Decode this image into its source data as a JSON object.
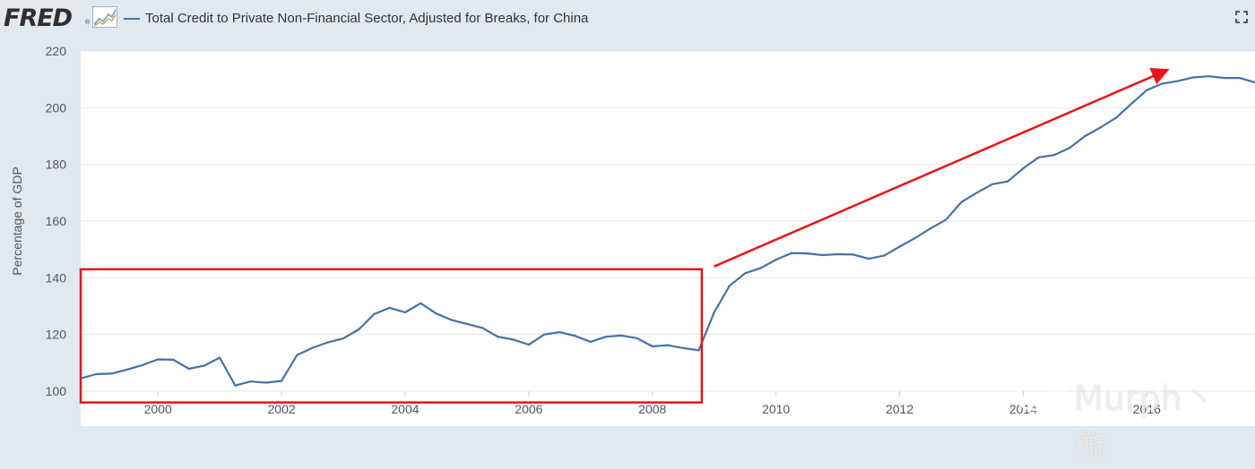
{
  "header": {
    "logo_text": "FRED",
    "logo_reg": "®",
    "legend_label": "Total Credit to Private Non-Financial Sector, Adjusted for Breaks, for China",
    "series_color": "#4572a7"
  },
  "icons": {
    "logo": "fred-graph-icon",
    "fullscreen": "fullscreen-icon"
  },
  "watermark": {
    "text": "Murph丶 璇"
  },
  "annotation_color": "#e8141b",
  "chart_data": {
    "type": "line",
    "title": "Total Credit to Private Non-Financial Sector, Adjusted for Breaks, for China",
    "ylabel": "Percentage of GDP",
    "xlabel": "",
    "ylim": [
      100,
      220
    ],
    "xlim": [
      1998.75,
      2017.75
    ],
    "yticks": [
      100,
      120,
      140,
      160,
      180,
      200,
      220
    ],
    "xticks": [
      "2000",
      "2002",
      "2004",
      "2006",
      "2008",
      "2010",
      "2012",
      "2014",
      "2016"
    ],
    "grid": true,
    "series": [
      {
        "name": "Total Credit to Private Non-Financial Sector, Adjusted for Breaks, for China",
        "x": [
          "1998-10-01",
          "1999-01-01",
          "1999-04-01",
          "1999-07-01",
          "1999-10-01",
          "2000-01-01",
          "2000-04-01",
          "2000-07-01",
          "2000-10-01",
          "2001-01-01",
          "2001-04-01",
          "2001-07-01",
          "2001-10-01",
          "2002-01-01",
          "2002-04-01",
          "2002-07-01",
          "2002-10-01",
          "2003-01-01",
          "2003-04-01",
          "2003-07-01",
          "2003-10-01",
          "2004-01-01",
          "2004-04-01",
          "2004-07-01",
          "2004-10-01",
          "2005-01-01",
          "2005-04-01",
          "2005-07-01",
          "2005-10-01",
          "2006-01-01",
          "2006-04-01",
          "2006-07-01",
          "2006-10-01",
          "2007-01-01",
          "2007-04-01",
          "2007-07-01",
          "2007-10-01",
          "2008-01-01",
          "2008-04-01",
          "2008-07-01",
          "2008-10-01",
          "2009-01-01",
          "2009-04-01",
          "2009-07-01",
          "2009-10-01",
          "2010-01-01",
          "2010-04-01",
          "2010-07-01",
          "2010-10-01",
          "2011-01-01",
          "2011-04-01",
          "2011-07-01",
          "2011-10-01",
          "2012-01-01",
          "2012-04-01",
          "2012-07-01",
          "2012-10-01",
          "2013-01-01",
          "2013-04-01",
          "2013-07-01",
          "2013-10-01",
          "2014-01-01",
          "2014-04-01",
          "2014-07-01",
          "2014-10-01",
          "2015-01-01",
          "2015-04-01",
          "2015-07-01",
          "2015-10-01",
          "2016-01-01",
          "2016-04-01",
          "2016-07-01",
          "2016-10-01",
          "2017-01-01",
          "2017-04-01",
          "2017-07-01",
          "2017-10-01"
        ],
        "values": [
          104.5,
          106.0,
          106.2,
          107.6,
          109.2,
          111.2,
          111.1,
          107.9,
          109.0,
          111.8,
          102.0,
          103.4,
          103.0,
          103.6,
          112.7,
          115.3,
          117.2,
          118.6,
          121.8,
          127.2,
          129.4,
          127.8,
          131.0,
          127.4,
          125.1,
          123.7,
          122.3,
          119.2,
          118.2,
          116.4,
          120.0,
          120.8,
          119.5,
          117.4,
          119.2,
          119.6,
          118.7,
          115.8,
          116.2,
          115.2,
          114.4,
          127.8,
          137.2,
          141.6,
          143.4,
          146.4,
          148.7,
          148.6,
          148.0,
          148.3,
          148.2,
          146.7,
          147.8,
          151.0,
          154.0,
          157.4,
          160.5,
          166.7,
          170.0,
          173.0,
          174.0,
          178.6,
          182.5,
          183.3,
          185.8,
          190.0,
          193.0,
          196.4,
          201.4,
          206.2,
          208.5,
          209.4,
          210.7,
          211.1,
          210.5,
          210.5,
          208.9
        ]
      }
    ],
    "annotations": [
      {
        "type": "rectangle",
        "x_range": [
          1998.75,
          2008.8
        ],
        "y_range": [
          96,
          143
        ]
      },
      {
        "type": "arrow",
        "from": [
          2009.0,
          144
        ],
        "to": [
          2016.3,
          213
        ]
      }
    ]
  }
}
